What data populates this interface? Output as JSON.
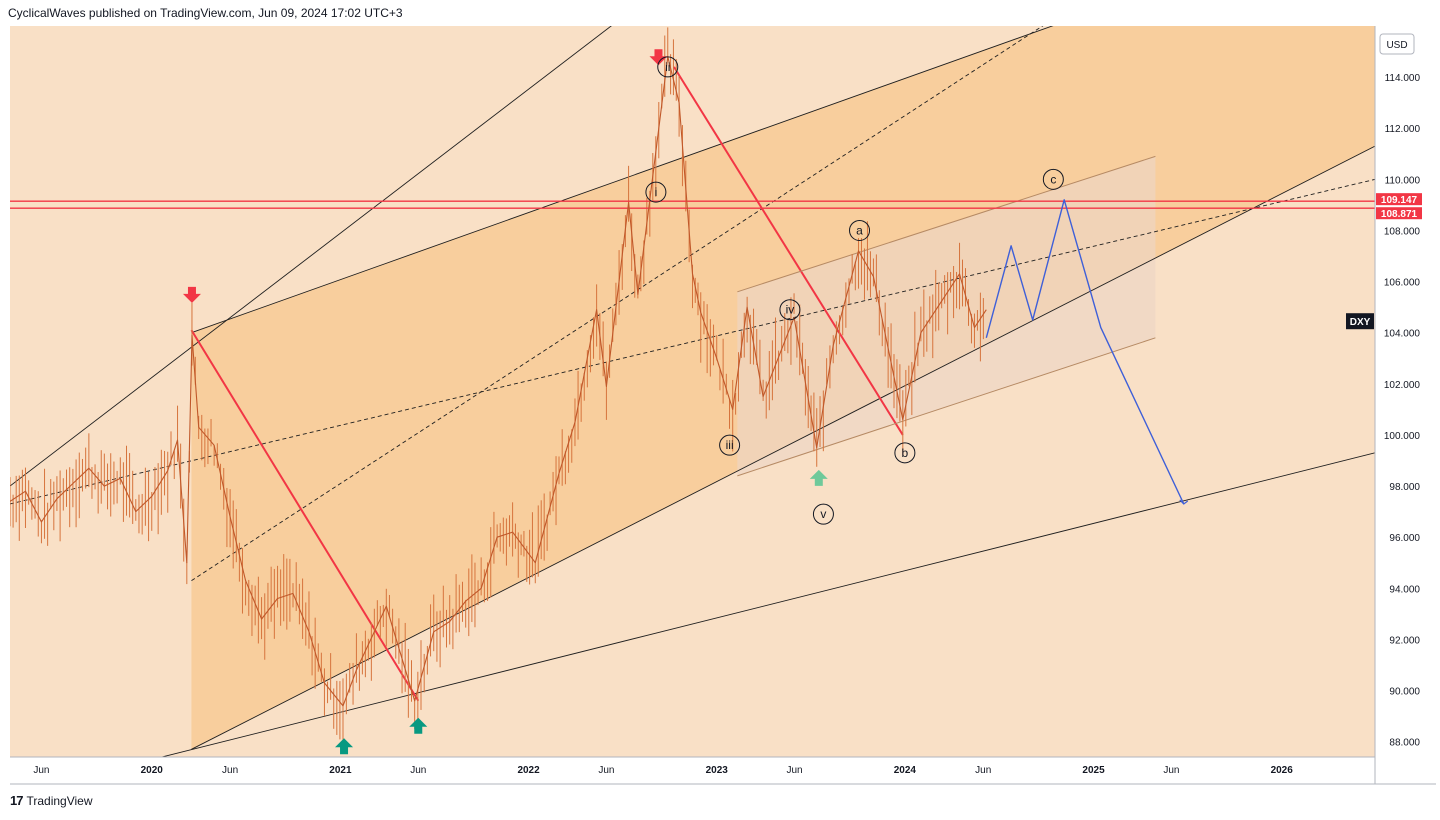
{
  "header": {
    "published": "CyclicalWaves published on TradingView.com, Jun 09, 2024 17:02 UTC+3"
  },
  "footer": {
    "brand": "TradingView",
    "logo_glyph": "17"
  },
  "currency": "USD",
  "symbol": "DXY",
  "colors": {
    "background_fill": "#f9e0c6",
    "channel_fill": "#f8c992",
    "red": "#f23645",
    "candle": "#d6743d",
    "projection": "#3e5fd8",
    "up_arrow": "#089981",
    "up_arrow_faded": "#6fc99a",
    "wave_box": "#ecd6c4"
  },
  "chart_data": {
    "type": "line",
    "title": "",
    "xlabel": "",
    "ylabel": "",
    "ylim": [
      87.4,
      116.0
    ],
    "xlim": [
      "2019-04-01",
      "2026-07-01"
    ],
    "y_ticks": [
      "88.000",
      "90.000",
      "92.000",
      "94.000",
      "96.000",
      "98.000",
      "100.000",
      "102.000",
      "104.000",
      "106.000",
      "108.000",
      "110.000",
      "112.000",
      "114.000"
    ],
    "x_ticks": [
      {
        "label": "Jun",
        "date": "2019-06-01",
        "bold": false
      },
      {
        "label": "2020",
        "date": "2020-01-01",
        "bold": true
      },
      {
        "label": "Jun",
        "date": "2020-06-01",
        "bold": false
      },
      {
        "label": "2021",
        "date": "2021-01-01",
        "bold": true
      },
      {
        "label": "Jun",
        "date": "2021-06-01",
        "bold": false
      },
      {
        "label": "2022",
        "date": "2022-01-01",
        "bold": true
      },
      {
        "label": "Jun",
        "date": "2022-06-01",
        "bold": false
      },
      {
        "label": "2023",
        "date": "2023-01-01",
        "bold": true
      },
      {
        "label": "Jun",
        "date": "2023-06-01",
        "bold": false
      },
      {
        "label": "2024",
        "date": "2024-01-01",
        "bold": true
      },
      {
        "label": "Jun",
        "date": "2024-06-01",
        "bold": false
      },
      {
        "label": "2025",
        "date": "2025-01-01",
        "bold": true
      },
      {
        "label": "Jun",
        "date": "2025-06-01",
        "bold": false
      },
      {
        "label": "2026",
        "date": "2026-01-01",
        "bold": true
      }
    ],
    "series": [
      {
        "name": "DXY",
        "points": [
          [
            "2019-04-01",
            97.4
          ],
          [
            "2019-05-01",
            97.8
          ],
          [
            "2019-06-01",
            96.6
          ],
          [
            "2019-07-01",
            97.5
          ],
          [
            "2019-08-01",
            98.1
          ],
          [
            "2019-09-01",
            98.7
          ],
          [
            "2019-10-01",
            98.0
          ],
          [
            "2019-11-01",
            98.3
          ],
          [
            "2019-12-01",
            97.0
          ],
          [
            "2020-01-01",
            97.6
          ],
          [
            "2020-02-01",
            98.6
          ],
          [
            "2020-02-20",
            99.8
          ],
          [
            "2020-03-09",
            95.0
          ],
          [
            "2020-03-19",
            103.9
          ],
          [
            "2020-04-01",
            100.3
          ],
          [
            "2020-05-01",
            99.6
          ],
          [
            "2020-06-01",
            96.8
          ],
          [
            "2020-07-01",
            94.3
          ],
          [
            "2020-08-01",
            92.8
          ],
          [
            "2020-09-01",
            93.6
          ],
          [
            "2020-10-01",
            93.8
          ],
          [
            "2020-11-01",
            92.3
          ],
          [
            "2020-12-01",
            90.3
          ],
          [
            "2021-01-06",
            89.4
          ],
          [
            "2021-02-01",
            90.8
          ],
          [
            "2021-03-31",
            93.3
          ],
          [
            "2021-05-25",
            89.6
          ],
          [
            "2021-07-01",
            92.3
          ],
          [
            "2021-08-01",
            92.7
          ],
          [
            "2021-09-01",
            93.5
          ],
          [
            "2021-10-01",
            94.0
          ],
          [
            "2021-11-01",
            96.0
          ],
          [
            "2021-12-01",
            96.2
          ],
          [
            "2022-01-14",
            95.0
          ],
          [
            "2022-03-01",
            98.5
          ],
          [
            "2022-04-01",
            100.5
          ],
          [
            "2022-05-13",
            104.9
          ],
          [
            "2022-06-01",
            101.9
          ],
          [
            "2022-07-14",
            109.1
          ],
          [
            "2022-08-01",
            105.5
          ],
          [
            "2022-09-28",
            114.8
          ],
          [
            "2022-10-20",
            113.0
          ],
          [
            "2022-11-15",
            106.3
          ],
          [
            "2022-12-01",
            104.8
          ],
          [
            "2023-01-01",
            103.0
          ],
          [
            "2023-02-01",
            101.0
          ],
          [
            "2023-03-01",
            105.0
          ],
          [
            "2023-04-01",
            101.5
          ],
          [
            "2023-05-31",
            104.6
          ],
          [
            "2023-07-14",
            99.5
          ],
          [
            "2023-08-15",
            103.5
          ],
          [
            "2023-10-03",
            107.2
          ],
          [
            "2023-11-01",
            106.2
          ],
          [
            "2023-12-28",
            100.6
          ],
          [
            "2024-02-01",
            104.0
          ],
          [
            "2024-04-16",
            106.3
          ],
          [
            "2024-05-15",
            104.2
          ],
          [
            "2024-06-07",
            104.9
          ]
        ]
      },
      {
        "name": "projection",
        "points": [
          [
            "2024-06-07",
            103.8
          ],
          [
            "2024-07-25",
            107.4
          ],
          [
            "2024-09-05",
            104.5
          ],
          [
            "2024-11-05",
            109.2
          ],
          [
            "2025-01-15",
            104.2
          ],
          [
            "2025-06-25",
            97.3
          ]
        ]
      }
    ],
    "price_lines": [
      {
        "value": 109.147,
        "label": "109.147"
      },
      {
        "value": 108.871,
        "label": "108.871"
      }
    ],
    "last_price_tag": {
      "value": 104.45,
      "label": "DXY"
    },
    "wave_labels": [
      {
        "text": "i",
        "date": "2022-09-05",
        "price": 109.5
      },
      {
        "text": "ii",
        "date": "2022-09-28",
        "price": 114.4
      },
      {
        "text": "iii",
        "date": "2023-01-26",
        "price": 99.6
      },
      {
        "text": "iv",
        "date": "2023-05-23",
        "price": 104.9
      },
      {
        "text": "v",
        "date": "2023-07-27",
        "price": 96.9
      },
      {
        "text": "a",
        "date": "2023-10-05",
        "price": 108.0
      },
      {
        "text": "b",
        "date": "2024-01-01",
        "price": 99.3
      },
      {
        "text": "c",
        "date": "2024-10-15",
        "price": 110.0
      }
    ],
    "arrows": [
      {
        "dir": "down",
        "date": "2020-03-19",
        "price": 105.4,
        "color": "red"
      },
      {
        "dir": "down",
        "date": "2022-09-10",
        "price": 114.7,
        "color": "red"
      },
      {
        "dir": "up",
        "date": "2021-01-08",
        "price": 87.9,
        "color": "green"
      },
      {
        "dir": "up",
        "date": "2021-06-01",
        "price": 88.7,
        "color": "green"
      },
      {
        "dir": "up",
        "date": "2023-07-18",
        "price": 98.4,
        "color": "green_faded"
      }
    ],
    "channel_lines": [
      {
        "kind": "solid",
        "points": [
          [
            "2020-03-18",
            104.0
          ],
          [
            "2025-02-01",
            116.8
          ]
        ]
      },
      {
        "kind": "solid",
        "points": [
          [
            "2020-03-18",
            87.7
          ],
          [
            "2026-07-01",
            111.3
          ]
        ]
      },
      {
        "kind": "solid",
        "points": [
          [
            "2019-04-01",
            98.0
          ],
          [
            "2022-08-01",
            116.8
          ]
        ]
      },
      {
        "kind": "solid",
        "points": [
          [
            "2020-01-01",
            87.3
          ],
          [
            "2026-07-01",
            99.3
          ]
        ]
      },
      {
        "kind": "dashed",
        "points": [
          [
            "2020-03-18",
            94.3
          ],
          [
            "2024-11-01",
            116.5
          ]
        ]
      },
      {
        "kind": "dashed",
        "points": [
          [
            "2019-04-01",
            97.3
          ],
          [
            "2026-07-01",
            110.0
          ]
        ]
      },
      {
        "kind": "red",
        "points": [
          [
            "2020-03-18",
            104.1
          ],
          [
            "2021-06-01",
            89.6
          ]
        ]
      },
      {
        "kind": "red",
        "points": [
          [
            "2022-10-10",
            114.4
          ],
          [
            "2023-12-28",
            100.0
          ]
        ]
      },
      {
        "kind": "thin",
        "points": [
          [
            "2023-02-10",
            105.6
          ],
          [
            "2025-05-01",
            110.9
          ]
        ]
      },
      {
        "kind": "thin",
        "points": [
          [
            "2023-02-10",
            98.4
          ],
          [
            "2025-05-01",
            103.8
          ]
        ]
      }
    ]
  }
}
